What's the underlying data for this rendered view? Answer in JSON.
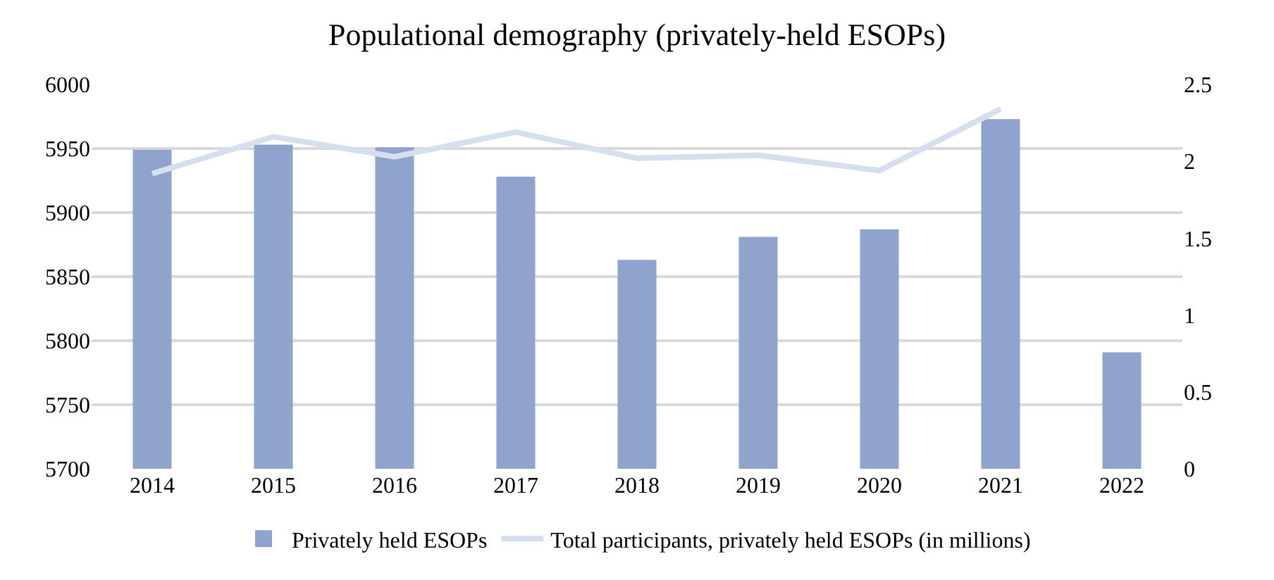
{
  "chart_data": {
    "type": "bar",
    "title": "Populational demography (privately-held ESOPs)",
    "categories": [
      "2014",
      "2015",
      "2016",
      "2017",
      "2018",
      "2019",
      "2020",
      "2021",
      "2022"
    ],
    "series": [
      {
        "name": "Privately held ESOPs",
        "color": "#8fa3cc",
        "values": [
          5949,
          5953,
          5951,
          5928,
          5863,
          5881,
          5887,
          5973,
          5791
        ]
      },
      {
        "name": "Total participants, privately held ESOPs (in millions)",
        "type": "line",
        "axis": "y2",
        "color": "#d6dff0",
        "values": [
          1.92,
          2.16,
          2.03,
          2.19,
          2.02,
          2.04,
          1.94,
          2.34,
          null
        ]
      }
    ],
    "ylim": [
      5700,
      6000
    ],
    "yticks": [
      5700,
      5750,
      5800,
      5850,
      5900,
      5950,
      6000
    ],
    "y2lim": [
      0,
      2.5
    ],
    "y2ticks": [
      0,
      0.5,
      1,
      1.5,
      2,
      2.5
    ],
    "grid": "y",
    "legend": "bottom",
    "line_style": "solid",
    "marker": "none"
  }
}
